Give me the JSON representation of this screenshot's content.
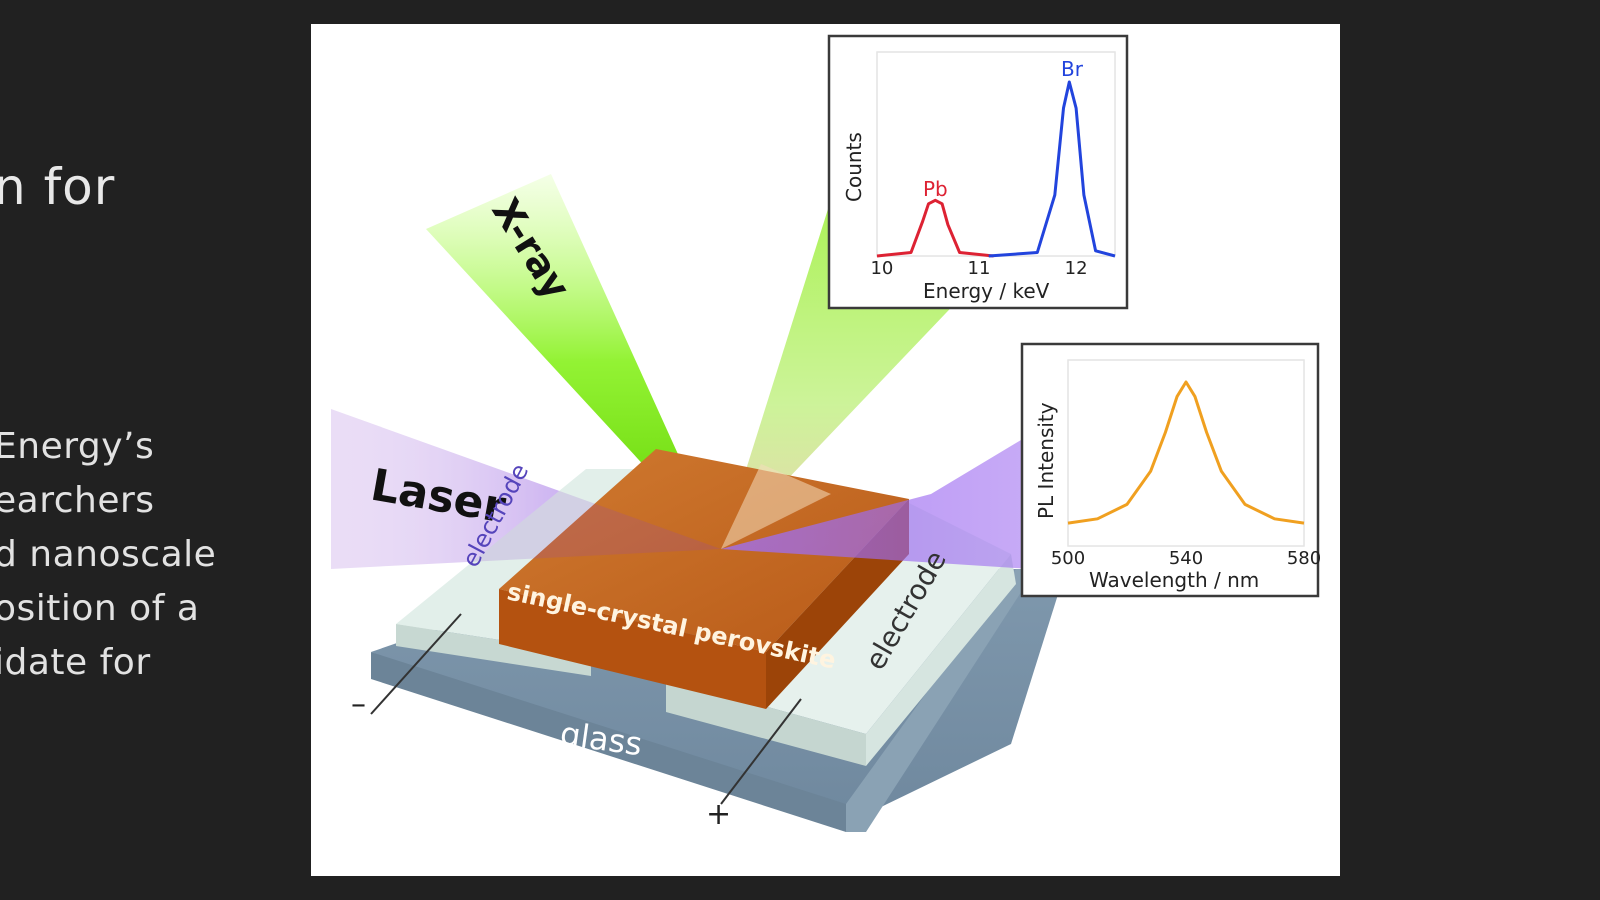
{
  "side_panel": {
    "title": "n for",
    "lines": [
      "Energy’s",
      "earchers",
      "d nanoscale",
      "osition of a",
      "idate for"
    ]
  },
  "figure": {
    "beam_labels": {
      "xray": "X-ray",
      "laser": "Laser"
    },
    "layer_labels": {
      "crystal": "single-crystal perovskite",
      "electrode_left": "electrode",
      "electrode_right": "electrode",
      "substrate": "glass"
    },
    "terminals": {
      "negative": "–",
      "positive": "+"
    },
    "colors": {
      "xray_beam": "#7cf000",
      "laser_beam": "#9966ee",
      "crystal": "#c8641e",
      "electrode": "#dfeee8",
      "glass": "#8ea6b8",
      "pb_peak": "#dd2233",
      "br_peak": "#2244dd",
      "pl_curve": "#f0a020"
    }
  },
  "chart_data": [
    {
      "type": "line",
      "xlabel": "Energy / keV",
      "ylabel": "Counts",
      "xlim": [
        9.95,
        12.4
      ],
      "xticks": [
        10,
        11,
        12
      ],
      "annotations": [
        "Pb",
        "Br"
      ],
      "series": [
        {
          "color": "#dd2233",
          "x": [
            9.95,
            10.3,
            10.42,
            10.48,
            10.55,
            10.62,
            10.68,
            10.8,
            11.15
          ],
          "y": [
            0.0,
            0.02,
            0.2,
            0.3,
            0.32,
            0.3,
            0.18,
            0.02,
            0.0
          ]
        },
        {
          "color": "#2244dd",
          "x": [
            11.1,
            11.6,
            11.78,
            11.87,
            11.93,
            12.0,
            12.08,
            12.2,
            12.4
          ],
          "y": [
            0.0,
            0.02,
            0.35,
            0.85,
            1.0,
            0.85,
            0.35,
            0.03,
            0.0
          ]
        }
      ]
    },
    {
      "type": "line",
      "xlabel": "Wavelength / nm",
      "ylabel": "PL Intensity",
      "xlim": [
        500,
        580
      ],
      "xticks": [
        500,
        540,
        580
      ],
      "series": [
        {
          "color": "#f0a020",
          "x": [
            500,
            510,
            520,
            528,
            533,
            537,
            540,
            543,
            547,
            552,
            560,
            570,
            580
          ],
          "y": [
            0.02,
            0.05,
            0.15,
            0.38,
            0.65,
            0.9,
            1.0,
            0.9,
            0.65,
            0.38,
            0.15,
            0.05,
            0.02
          ]
        }
      ]
    }
  ]
}
